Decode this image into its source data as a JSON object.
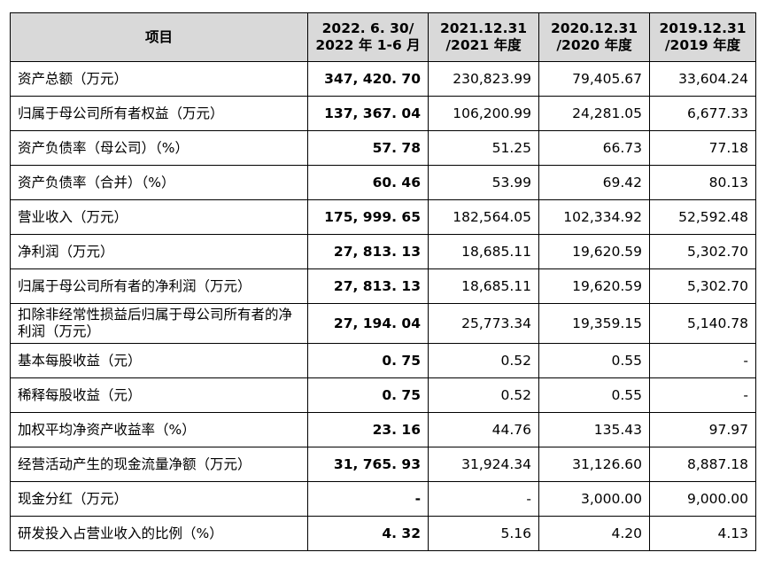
{
  "table": {
    "headers": [
      {
        "lines": [
          "项目"
        ]
      },
      {
        "lines": [
          "2022. 6. 30/",
          "2022 年 1-6 月"
        ]
      },
      {
        "lines": [
          "2021.12.31",
          "/2021 年度"
        ]
      },
      {
        "lines": [
          "2020.12.31",
          "/2020 年度"
        ]
      },
      {
        "lines": [
          "2019.12.31",
          "/2019 年度"
        ]
      }
    ],
    "rows": [
      {
        "label": "资产总额（万元）",
        "values": [
          "347, 420. 70",
          "230,823.99",
          "79,405.67",
          "33,604.24"
        ]
      },
      {
        "label": "归属于母公司所有者权益（万元）",
        "values": [
          "137, 367. 04",
          "106,200.99",
          "24,281.05",
          "6,677.33"
        ]
      },
      {
        "label": "资产负债率（母公司）（%）",
        "values": [
          "57. 78",
          "51.25",
          "66.73",
          "77.18"
        ]
      },
      {
        "label": "资产负债率（合并）（%）",
        "values": [
          "60. 46",
          "53.99",
          "69.42",
          "80.13"
        ]
      },
      {
        "label": "营业收入（万元）",
        "values": [
          "175, 999. 65",
          "182,564.05",
          "102,334.92",
          "52,592.48"
        ]
      },
      {
        "label": "净利润（万元）",
        "values": [
          "27, 813. 13",
          "18,685.11",
          "19,620.59",
          "5,302.70"
        ]
      },
      {
        "label": "归属于母公司所有者的净利润（万元）",
        "values": [
          "27, 813. 13",
          "18,685.11",
          "19,620.59",
          "5,302.70"
        ]
      },
      {
        "label": "扣除非经常性损益后归属于母公司所有者的净利润（万元）",
        "values": [
          "27, 194. 04",
          "25,773.34",
          "19,359.15",
          "5,140.78"
        ]
      },
      {
        "label": "基本每股收益（元）",
        "values": [
          "0. 75",
          "0.52",
          "0.55",
          "-"
        ]
      },
      {
        "label": "稀释每股收益（元）",
        "values": [
          "0. 75",
          "0.52",
          "0.55",
          "-"
        ]
      },
      {
        "label": "加权平均净资产收益率（%）",
        "values": [
          "23. 16",
          "44.76",
          "135.43",
          "97.97"
        ]
      },
      {
        "label": "经营活动产生的现金流量净额（万元）",
        "values": [
          "31, 765. 93",
          "31,924.34",
          "31,126.60",
          "8,887.18"
        ]
      },
      {
        "label": "现金分红（万元）",
        "values": [
          "-",
          "-",
          "3,000.00",
          "9,000.00"
        ]
      },
      {
        "label": "研发投入占营业收入的比例（%）",
        "values": [
          "4. 32",
          "5.16",
          "4.20",
          "4.13"
        ]
      }
    ]
  }
}
